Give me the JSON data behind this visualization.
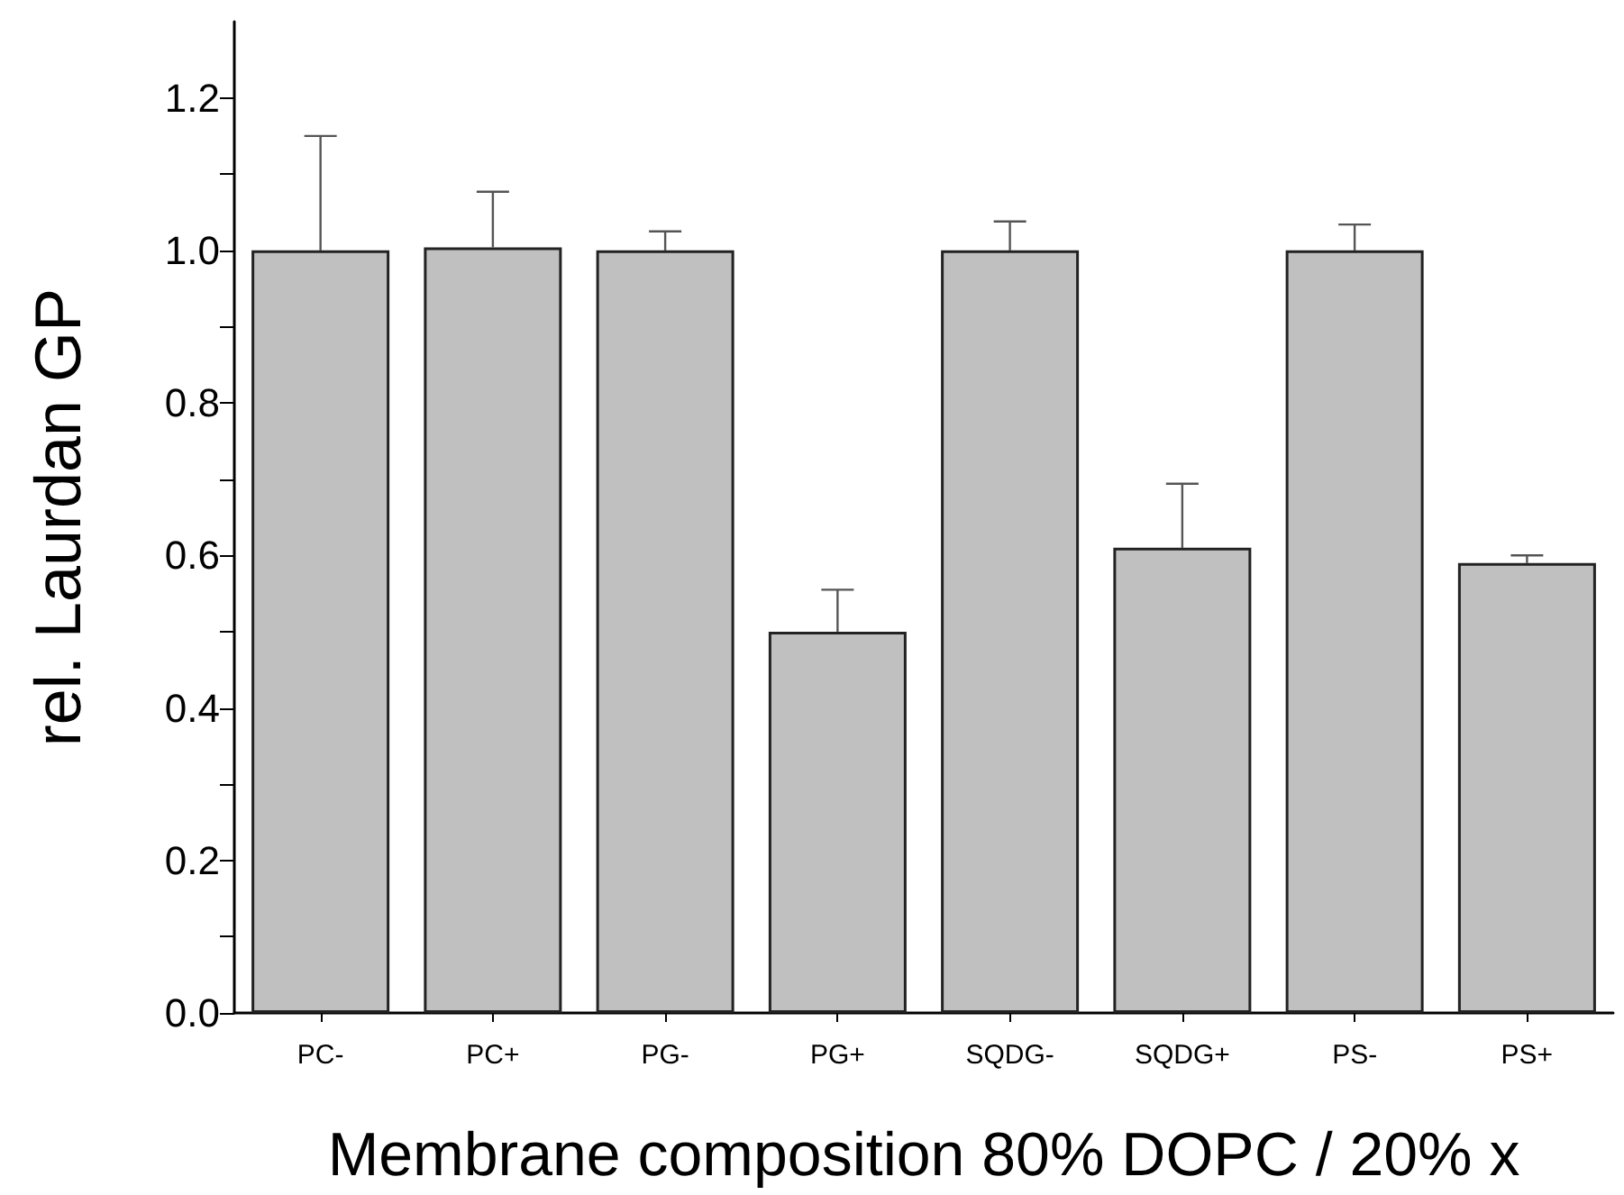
{
  "chart_data": {
    "type": "bar",
    "xlabel": "Membrane composition 80% DOPC / 20% x",
    "ylabel": "rel. Laurdan GP",
    "categories": [
      "PC-",
      "PC+",
      "PG-",
      "PG+",
      "SQDG-",
      "SQDG+",
      "PS-",
      "PS+"
    ],
    "values": [
      1.0,
      1.004,
      1.0,
      0.5,
      1.0,
      0.61,
      1.0,
      0.59
    ],
    "errors": [
      [
        1.0,
        1.15
      ],
      [
        1.004,
        1.077
      ],
      [
        1.0,
        1.025
      ],
      [
        0.5,
        0.555
      ],
      [
        1.0,
        1.038
      ],
      [
        0.61,
        0.694
      ],
      [
        1.0,
        1.034
      ],
      [
        0.59,
        0.6
      ]
    ],
    "color": "#c0c0c0",
    "ylim": [
      0,
      1.3
    ],
    "yticks": [
      {
        "value": 0,
        "label": "0.0"
      },
      {
        "value": 0.1,
        "label": null
      },
      0.2,
      {
        "value": 0.3,
        "label": null
      },
      0.4,
      {
        "value": 0.5,
        "label": null
      },
      0.6,
      {
        "value": 0.7,
        "label": null
      },
      0.8,
      {
        "value": 0.9,
        "label": null
      },
      {
        "value": 1,
        "label": "1.0"
      },
      {
        "value": 1.1,
        "label": null
      },
      1.2
    ],
    "grid": false
  }
}
